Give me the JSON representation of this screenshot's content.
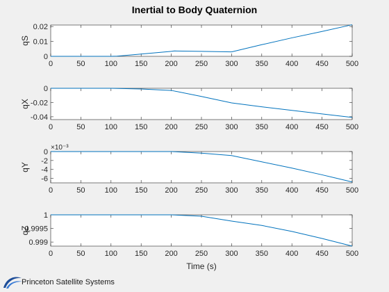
{
  "figure": {
    "title": "Inertial to Body Quaternion",
    "xlabel": "Time (s)",
    "brand": "Princeton Satellite Systems",
    "brand_icon": "pss-swoosh-logo-icon",
    "line_color": "#0072bd"
  },
  "chart_data": [
    {
      "type": "line",
      "ylabel": "qS",
      "xlim": [
        0,
        500
      ],
      "ylim": [
        0,
        0.021
      ],
      "xticks": [
        "0",
        "50",
        "100",
        "150",
        "200",
        "250",
        "300",
        "350",
        "400",
        "450",
        "500"
      ],
      "yticks": [
        {
          "v": 0,
          "label": "0"
        },
        {
          "v": 0.01,
          "label": "0.01"
        },
        {
          "v": 0.02,
          "label": "0.02"
        }
      ],
      "exponent": "",
      "series": [
        {
          "x": [
            0,
            100,
            110,
            150,
            200,
            205,
            250,
            300,
            350,
            400,
            450,
            500
          ],
          "y": [
            0,
            0,
            0.0001,
            0.0015,
            0.0033,
            0.0036,
            0.0033,
            0.003,
            0.0078,
            0.0124,
            0.0167,
            0.0212
          ]
        }
      ]
    },
    {
      "type": "line",
      "ylabel": "qX",
      "xlim": [
        0,
        500
      ],
      "ylim": [
        -0.044,
        0
      ],
      "xticks": [
        "0",
        "50",
        "100",
        "150",
        "200",
        "250",
        "300",
        "350",
        "400",
        "450",
        "500"
      ],
      "yticks": [
        {
          "v": 0,
          "label": "0"
        },
        {
          "v": -0.02,
          "label": "-0.02"
        },
        {
          "v": -0.04,
          "label": "-0.04"
        }
      ],
      "exponent": "",
      "series": [
        {
          "x": [
            0,
            100,
            150,
            200,
            250,
            300,
            350,
            400,
            450,
            500
          ],
          "y": [
            0,
            0,
            -0.001,
            -0.003,
            -0.0115,
            -0.0205,
            -0.026,
            -0.031,
            -0.036,
            -0.041
          ]
        }
      ]
    },
    {
      "type": "line",
      "ylabel": "qY",
      "xlim": [
        0,
        500
      ],
      "ylim": [
        -7,
        0
      ],
      "xticks": [
        "0",
        "50",
        "100",
        "150",
        "200",
        "250",
        "300",
        "350",
        "400",
        "450",
        "500"
      ],
      "yticks": [
        {
          "v": 0,
          "label": "0"
        },
        {
          "v": -2,
          "label": "-2"
        },
        {
          "v": -4,
          "label": "-4"
        },
        {
          "v": -6,
          "label": "-6"
        }
      ],
      "exponent": "×10⁻³",
      "series": [
        {
          "x": [
            0,
            100,
            200,
            250,
            300,
            350,
            400,
            450,
            500
          ],
          "y": [
            0,
            0,
            0,
            -0.35,
            -0.9,
            -2.3,
            -3.7,
            -5.2,
            -6.8
          ]
        }
      ]
    },
    {
      "type": "line",
      "ylabel": "qZ",
      "xlim": [
        0,
        500
      ],
      "ylim": [
        0.99885,
        1.0
      ],
      "xticks": [
        "0",
        "50",
        "100",
        "150",
        "200",
        "250",
        "300",
        "350",
        "400",
        "450",
        "500"
      ],
      "yticks": [
        {
          "v": 1.0,
          "label": "1"
        },
        {
          "v": 0.9995,
          "label": "0.9995"
        },
        {
          "v": 0.999,
          "label": "0.999"
        }
      ],
      "exponent": "",
      "series": [
        {
          "x": [
            0,
            100,
            200,
            250,
            300,
            350,
            400,
            450,
            500
          ],
          "y": [
            1.0,
            1.0,
            1.0,
            0.99995,
            0.99977,
            0.99961,
            0.99939,
            0.99913,
            0.99885
          ]
        }
      ]
    }
  ]
}
